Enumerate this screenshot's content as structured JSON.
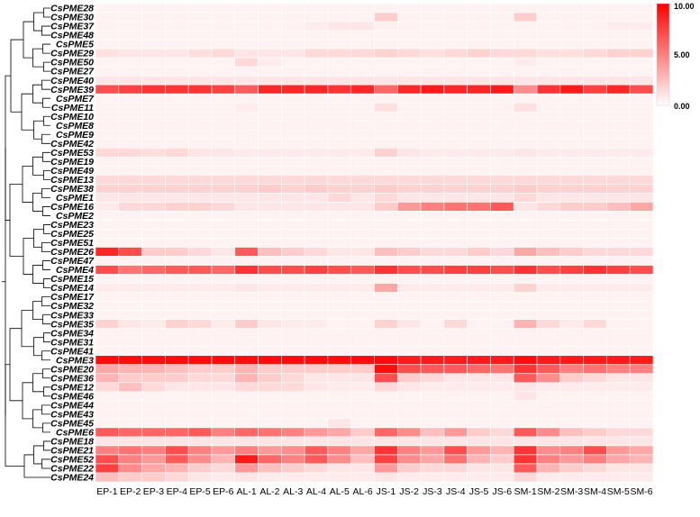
{
  "chart_data": {
    "type": "heatmap",
    "title": "",
    "xlabel": "",
    "ylabel": "",
    "colorscale": {
      "min": 0,
      "max": 10,
      "low_color": "#ffffff",
      "high_color": "#ff0000",
      "ticks": [
        "0.00",
        "5.00",
        "10.00"
      ]
    },
    "columns": [
      "EP-1",
      "EP-2",
      "EP-3",
      "EP-4",
      "EP-5",
      "EP-6",
      "AL-1",
      "AL-2",
      "AL-3",
      "AL-4",
      "AL-5",
      "AL-6",
      "JS-1",
      "JS-2",
      "JS-3",
      "JS-4",
      "JS-5",
      "JS-6",
      "SM-1",
      "SM-2",
      "SM-3",
      "SM-4",
      "SM-5",
      "SM-6"
    ],
    "rows": [
      "CsPME28",
      "CsPME30",
      "CsPME37",
      "CsPME48",
      "CsPME5",
      "CsPME29",
      "CsPME50",
      "CsPME27",
      "CsPME40",
      "CsPME39",
      "CsPME7",
      "CsPME11",
      "CsPME10",
      "CsPME8",
      "CsPME9",
      "CsPME42",
      "CsPME53",
      "CsPME19",
      "CsPME49",
      "CsPME13",
      "CsPME38",
      "CsPME1",
      "CsPME16",
      "CsPME2",
      "CsPME23",
      "CsPME25",
      "CsPME51",
      "CsPME26",
      "CsPME47",
      "CsPME4",
      "CsPME15",
      "CsPME14",
      "CsPME17",
      "CsPME32",
      "CsPME33",
      "CsPME35",
      "CsPME34",
      "CsPME31",
      "CsPME41",
      "CsPME3",
      "CsPME20",
      "CsPME36",
      "CsPME12",
      "CsPME46",
      "CsPME44",
      "CsPME43",
      "CsPME45",
      "CsPME6",
      "CsPME18",
      "CsPME21",
      "CsPME52",
      "CsPME22",
      "CsPME24"
    ],
    "values": [
      [
        0.5,
        0.5,
        0.5,
        0.5,
        0.5,
        0.5,
        0.5,
        0.5,
        0.5,
        0.5,
        0.5,
        0.5,
        0.5,
        0.5,
        0.5,
        0.5,
        0.5,
        0.5,
        0.5,
        0.5,
        0.5,
        0.5,
        0.5,
        0.5
      ],
      [
        0.5,
        0.5,
        0.5,
        0.5,
        0.5,
        0.5,
        0.5,
        0.5,
        0.5,
        0.5,
        0.5,
        0.5,
        2.0,
        0.5,
        0.5,
        0.5,
        0.5,
        0.5,
        2.0,
        0.5,
        0.5,
        0.5,
        0.5,
        0.5
      ],
      [
        0.5,
        0.5,
        0.5,
        0.5,
        0.5,
        0.5,
        0.5,
        0.5,
        0.5,
        0.8,
        1.0,
        1.0,
        0.6,
        0.5,
        0.5,
        0.5,
        0.5,
        0.5,
        0.5,
        0.5,
        0.5,
        0.5,
        0.8,
        0.8
      ],
      [
        0.5,
        0.5,
        0.5,
        0.5,
        0.5,
        0.5,
        0.5,
        0.5,
        0.5,
        0.5,
        0.5,
        0.5,
        0.5,
        0.5,
        0.5,
        0.5,
        0.5,
        0.5,
        0.5,
        0.5,
        0.5,
        0.5,
        0.5,
        0.5
      ],
      [
        0.5,
        0.5,
        0.5,
        0.5,
        0.5,
        0.5,
        0.5,
        0.5,
        0.5,
        0.5,
        0.5,
        0.5,
        0.5,
        0.5,
        0.5,
        0.5,
        0.5,
        0.5,
        0.5,
        0.5,
        0.5,
        0.5,
        0.5,
        0.5
      ],
      [
        1.2,
        1.0,
        1.0,
        1.0,
        1.3,
        1.5,
        1.0,
        1.0,
        1.0,
        1.5,
        1.5,
        1.5,
        1.8,
        1.5,
        1.3,
        1.5,
        1.8,
        1.5,
        1.5,
        1.3,
        1.3,
        1.5,
        1.8,
        1.8
      ],
      [
        0.5,
        0.5,
        0.5,
        0.5,
        0.5,
        0.5,
        1.5,
        0.8,
        0.5,
        0.5,
        0.5,
        0.5,
        0.5,
        0.5,
        0.5,
        0.5,
        0.5,
        0.5,
        0.8,
        0.5,
        0.5,
        0.5,
        0.5,
        0.5
      ],
      [
        0.5,
        0.5,
        0.5,
        0.5,
        0.5,
        0.5,
        0.5,
        0.5,
        0.5,
        0.5,
        0.5,
        0.5,
        0.5,
        0.5,
        0.5,
        0.5,
        0.5,
        0.5,
        0.5,
        0.5,
        0.5,
        0.5,
        0.5,
        0.5
      ],
      [
        1.0,
        1.0,
        1.0,
        1.0,
        1.0,
        1.0,
        1.0,
        1.0,
        1.0,
        1.0,
        1.0,
        1.0,
        1.0,
        1.0,
        1.0,
        1.0,
        1.0,
        1.0,
        1.0,
        1.0,
        1.0,
        1.0,
        1.0,
        1.0
      ],
      [
        7.0,
        7.5,
        8.0,
        8.0,
        8.0,
        7.5,
        6.5,
        8.5,
        8.5,
        8.5,
        8.0,
        8.5,
        6.0,
        8.5,
        9.0,
        8.5,
        8.5,
        9.0,
        4.5,
        8.0,
        9.0,
        7.5,
        8.5,
        7.0
      ],
      [
        0.5,
        0.5,
        0.5,
        0.5,
        0.5,
        0.5,
        0.5,
        0.5,
        0.5,
        0.5,
        0.5,
        0.5,
        0.5,
        0.5,
        0.5,
        0.5,
        0.5,
        0.5,
        0.5,
        0.5,
        0.5,
        0.5,
        0.5,
        0.5
      ],
      [
        0.5,
        0.5,
        0.5,
        0.5,
        0.5,
        0.5,
        0.8,
        0.5,
        0.5,
        0.5,
        0.5,
        0.5,
        1.2,
        0.5,
        0.5,
        0.5,
        0.5,
        0.5,
        1.2,
        0.5,
        0.5,
        0.5,
        0.5,
        0.5
      ],
      [
        0.5,
        0.5,
        0.5,
        0.5,
        0.5,
        0.5,
        0.5,
        0.5,
        0.5,
        0.5,
        0.5,
        0.5,
        0.5,
        0.5,
        0.5,
        0.5,
        0.5,
        0.5,
        0.5,
        0.5,
        0.5,
        0.5,
        0.5,
        0.5
      ],
      [
        0.5,
        0.5,
        0.5,
        0.5,
        0.5,
        0.5,
        0.5,
        0.5,
        0.5,
        0.5,
        0.5,
        0.5,
        0.5,
        0.5,
        0.5,
        0.5,
        0.5,
        0.5,
        0.5,
        0.5,
        0.5,
        0.5,
        0.5,
        0.5
      ],
      [
        0.5,
        0.5,
        0.5,
        0.5,
        0.5,
        0.5,
        0.5,
        0.5,
        0.5,
        0.5,
        0.5,
        0.5,
        0.5,
        0.5,
        0.5,
        0.5,
        0.5,
        0.5,
        0.5,
        0.5,
        0.5,
        0.5,
        0.5,
        0.5
      ],
      [
        0.5,
        0.5,
        0.5,
        0.5,
        0.5,
        0.5,
        0.5,
        0.5,
        0.5,
        0.5,
        0.5,
        0.5,
        0.5,
        0.5,
        0.5,
        0.5,
        0.5,
        0.5,
        0.5,
        0.5,
        0.5,
        0.5,
        0.5,
        0.5
      ],
      [
        1.5,
        1.5,
        1.3,
        1.5,
        1.0,
        1.0,
        0.8,
        0.8,
        0.8,
        0.8,
        0.8,
        0.8,
        1.8,
        1.0,
        0.8,
        0.8,
        0.8,
        0.8,
        1.0,
        0.8,
        0.8,
        0.8,
        0.8,
        0.8
      ],
      [
        0.5,
        0.5,
        0.5,
        0.5,
        0.5,
        0.5,
        0.5,
        0.5,
        0.5,
        0.5,
        0.5,
        0.5,
        0.5,
        0.5,
        0.5,
        0.5,
        0.5,
        0.5,
        0.5,
        0.5,
        0.5,
        0.5,
        0.5,
        0.5
      ],
      [
        0.5,
        0.5,
        0.5,
        0.5,
        0.5,
        0.5,
        0.5,
        0.5,
        0.5,
        0.5,
        0.5,
        0.5,
        0.5,
        0.5,
        0.5,
        0.5,
        0.5,
        0.5,
        0.5,
        0.5,
        0.5,
        0.5,
        0.5,
        0.5
      ],
      [
        1.5,
        1.5,
        1.5,
        1.5,
        1.5,
        1.5,
        1.5,
        1.5,
        1.5,
        1.5,
        1.5,
        1.5,
        1.5,
        1.5,
        1.5,
        1.5,
        1.5,
        1.5,
        1.5,
        1.5,
        1.5,
        1.5,
        1.5,
        1.5
      ],
      [
        1.8,
        1.8,
        1.8,
        1.8,
        1.8,
        1.8,
        1.8,
        2.0,
        1.8,
        2.0,
        1.8,
        1.8,
        2.0,
        1.8,
        1.8,
        1.8,
        1.8,
        1.8,
        2.0,
        1.8,
        1.8,
        1.8,
        1.8,
        1.8
      ],
      [
        1.0,
        1.0,
        1.0,
        1.0,
        1.0,
        1.0,
        1.0,
        1.0,
        1.0,
        1.0,
        1.5,
        1.0,
        1.5,
        1.0,
        1.0,
        1.0,
        1.0,
        1.0,
        1.5,
        1.0,
        1.0,
        1.0,
        1.0,
        1.0
      ],
      [
        0.8,
        1.5,
        1.5,
        1.8,
        1.8,
        1.5,
        1.0,
        1.0,
        1.0,
        1.0,
        1.0,
        1.0,
        2.0,
        4.0,
        5.0,
        5.5,
        5.5,
        6.5,
        1.0,
        1.5,
        2.0,
        2.0,
        2.5,
        3.5
      ],
      [
        0.5,
        0.5,
        0.5,
        0.5,
        0.5,
        0.5,
        0.5,
        0.5,
        0.5,
        0.5,
        0.5,
        0.5,
        0.5,
        0.5,
        0.5,
        0.5,
        0.5,
        0.5,
        0.5,
        0.5,
        0.5,
        0.5,
        0.5,
        0.5
      ],
      [
        0.5,
        0.5,
        0.5,
        0.5,
        0.5,
        0.5,
        0.5,
        0.5,
        0.5,
        0.5,
        0.5,
        0.5,
        0.5,
        0.5,
        0.5,
        0.5,
        0.5,
        0.5,
        0.5,
        0.5,
        0.5,
        0.5,
        0.5,
        0.5
      ],
      [
        0.5,
        0.5,
        0.5,
        0.5,
        0.5,
        0.5,
        0.5,
        0.5,
        0.5,
        0.5,
        0.5,
        0.5,
        0.5,
        0.5,
        0.5,
        0.5,
        0.5,
        0.5,
        0.5,
        0.5,
        0.5,
        0.5,
        0.5,
        0.5
      ],
      [
        0.5,
        0.5,
        0.5,
        0.5,
        0.5,
        0.5,
        0.5,
        0.5,
        0.5,
        0.5,
        0.5,
        0.5,
        0.5,
        0.5,
        0.5,
        0.5,
        0.5,
        0.5,
        0.5,
        0.5,
        0.5,
        0.5,
        0.5,
        0.5
      ],
      [
        8.5,
        7.0,
        2.0,
        2.0,
        1.5,
        1.0,
        6.5,
        2.5,
        2.0,
        1.5,
        1.0,
        1.0,
        2.5,
        2.0,
        1.5,
        1.5,
        2.0,
        1.5,
        3.5,
        2.5,
        2.0,
        1.5,
        1.5,
        1.5
      ],
      [
        0.5,
        0.5,
        0.5,
        0.5,
        0.5,
        0.5,
        0.5,
        0.5,
        0.5,
        0.5,
        0.5,
        0.5,
        0.5,
        0.5,
        0.5,
        0.5,
        0.5,
        0.5,
        0.5,
        0.5,
        0.5,
        0.5,
        0.5,
        0.5
      ],
      [
        7.0,
        5.5,
        6.0,
        6.5,
        6.5,
        6.0,
        8.0,
        7.0,
        7.0,
        7.5,
        7.0,
        6.5,
        8.0,
        7.0,
        7.0,
        7.5,
        7.5,
        7.0,
        8.0,
        7.0,
        7.5,
        8.0,
        7.5,
        7.0
      ],
      [
        0.5,
        0.5,
        0.5,
        0.5,
        0.5,
        0.5,
        0.5,
        0.5,
        0.5,
        0.5,
        0.5,
        0.5,
        0.5,
        0.5,
        0.5,
        0.5,
        0.5,
        0.5,
        0.5,
        0.5,
        0.5,
        0.5,
        0.5,
        0.5
      ],
      [
        0.8,
        0.8,
        0.8,
        0.8,
        0.8,
        0.8,
        1.0,
        0.8,
        0.8,
        0.8,
        0.8,
        0.8,
        3.5,
        0.8,
        0.8,
        0.8,
        0.8,
        0.8,
        1.8,
        0.8,
        0.8,
        0.8,
        0.8,
        0.8
      ],
      [
        0.5,
        0.5,
        0.5,
        0.5,
        0.5,
        0.5,
        0.5,
        0.5,
        0.5,
        0.5,
        0.5,
        0.5,
        0.5,
        0.5,
        0.5,
        0.5,
        0.5,
        0.5,
        0.5,
        0.5,
        0.5,
        0.5,
        0.5,
        0.5
      ],
      [
        0.5,
        0.5,
        0.5,
        0.5,
        0.5,
        0.5,
        0.5,
        0.5,
        0.5,
        0.5,
        0.5,
        0.5,
        0.5,
        0.5,
        0.5,
        0.5,
        0.5,
        0.5,
        0.5,
        0.5,
        0.5,
        0.5,
        0.5,
        0.5
      ],
      [
        0.5,
        0.5,
        0.5,
        0.5,
        0.5,
        0.5,
        0.5,
        0.5,
        0.5,
        0.5,
        0.5,
        0.5,
        0.5,
        0.5,
        0.5,
        0.5,
        0.5,
        0.5,
        0.5,
        0.5,
        0.5,
        0.5,
        0.5,
        0.5
      ],
      [
        1.8,
        1.0,
        0.8,
        1.8,
        1.5,
        0.8,
        2.0,
        1.0,
        0.8,
        0.8,
        0.5,
        0.5,
        1.8,
        1.0,
        0.5,
        1.5,
        0.5,
        0.5,
        3.0,
        1.5,
        0.8,
        1.5,
        0.5,
        0.5
      ],
      [
        0.5,
        0.5,
        0.5,
        0.5,
        0.5,
        0.5,
        0.5,
        0.5,
        0.5,
        0.5,
        0.5,
        0.5,
        0.5,
        0.5,
        0.5,
        0.5,
        0.5,
        0.5,
        0.5,
        0.5,
        0.5,
        0.5,
        0.5,
        0.5
      ],
      [
        0.5,
        0.5,
        0.5,
        0.5,
        0.5,
        0.5,
        0.5,
        0.5,
        0.5,
        0.5,
        0.5,
        0.5,
        0.5,
        0.5,
        0.5,
        0.5,
        0.5,
        0.5,
        0.5,
        0.5,
        0.5,
        0.5,
        0.5,
        0.5
      ],
      [
        0.5,
        0.5,
        0.5,
        0.5,
        0.5,
        0.5,
        0.5,
        0.5,
        0.5,
        0.5,
        0.5,
        0.5,
        0.5,
        0.5,
        0.5,
        0.5,
        0.5,
        0.5,
        0.5,
        0.5,
        0.5,
        0.5,
        0.5,
        0.5
      ],
      [
        9.5,
        9.5,
        9.5,
        9.5,
        9.5,
        9.5,
        9.5,
        9.5,
        9.5,
        9.5,
        9.5,
        9.5,
        9.5,
        9.0,
        9.0,
        9.0,
        9.0,
        9.0,
        9.5,
        9.0,
        9.0,
        9.0,
        9.0,
        9.0
      ],
      [
        3.5,
        3.0,
        3.0,
        2.5,
        2.0,
        2.0,
        3.0,
        2.0,
        2.0,
        2.0,
        2.0,
        2.0,
        9.5,
        7.0,
        6.5,
        6.5,
        6.0,
        5.5,
        8.0,
        6.5,
        5.0,
        5.5,
        5.0,
        5.0
      ],
      [
        3.0,
        2.0,
        2.0,
        2.0,
        1.5,
        1.5,
        3.0,
        2.0,
        1.5,
        1.0,
        1.0,
        1.0,
        7.0,
        2.0,
        1.5,
        1.0,
        1.0,
        1.0,
        6.5,
        4.5,
        2.0,
        1.5,
        1.0,
        1.0
      ],
      [
        1.5,
        2.5,
        1.5,
        1.0,
        1.0,
        1.0,
        1.5,
        1.5,
        1.5,
        1.0,
        0.8,
        0.8,
        1.5,
        1.0,
        0.8,
        0.8,
        0.8,
        0.8,
        1.0,
        0.8,
        0.8,
        0.8,
        0.8,
        0.8
      ],
      [
        0.5,
        0.5,
        0.5,
        0.5,
        0.5,
        0.5,
        0.5,
        0.5,
        0.5,
        0.5,
        0.5,
        0.5,
        0.5,
        0.5,
        0.5,
        0.5,
        0.5,
        0.5,
        1.0,
        0.5,
        0.5,
        0.5,
        0.5,
        0.5
      ],
      [
        0.5,
        0.5,
        0.5,
        0.5,
        0.5,
        0.5,
        0.5,
        0.5,
        0.5,
        0.5,
        0.5,
        0.5,
        0.5,
        0.5,
        0.5,
        0.5,
        0.5,
        0.5,
        0.5,
        0.5,
        0.5,
        0.5,
        0.5,
        0.5
      ],
      [
        0.5,
        0.5,
        0.5,
        0.5,
        0.5,
        0.5,
        0.5,
        0.5,
        0.5,
        0.5,
        0.5,
        0.5,
        0.5,
        0.5,
        0.5,
        0.5,
        0.5,
        0.5,
        0.5,
        0.5,
        0.5,
        0.5,
        0.5,
        0.5
      ],
      [
        0.5,
        0.5,
        0.5,
        0.5,
        0.5,
        0.5,
        0.5,
        0.5,
        0.5,
        0.5,
        1.0,
        0.5,
        0.5,
        0.5,
        0.5,
        0.5,
        0.5,
        0.5,
        0.5,
        0.5,
        0.5,
        0.5,
        0.5,
        0.5
      ],
      [
        6.5,
        6.0,
        6.0,
        6.0,
        6.5,
        5.0,
        6.0,
        5.5,
        5.0,
        4.0,
        3.5,
        2.0,
        6.0,
        4.5,
        2.5,
        4.0,
        2.0,
        1.5,
        6.5,
        4.5,
        2.5,
        2.0,
        1.5,
        1.5
      ],
      [
        1.0,
        1.0,
        1.0,
        1.0,
        1.0,
        1.0,
        1.0,
        1.0,
        1.0,
        1.0,
        1.0,
        1.0,
        1.0,
        1.0,
        1.0,
        1.0,
        1.0,
        1.0,
        1.0,
        1.0,
        1.0,
        1.0,
        1.0,
        1.0
      ],
      [
        5.0,
        5.5,
        5.0,
        7.0,
        5.0,
        4.0,
        5.0,
        4.0,
        4.5,
        6.5,
        5.0,
        3.5,
        8.0,
        5.0,
        4.0,
        7.0,
        4.0,
        3.0,
        8.0,
        4.5,
        5.0,
        7.0,
        4.0,
        3.5
      ],
      [
        7.0,
        5.0,
        4.0,
        6.5,
        4.5,
        3.0,
        9.0,
        6.0,
        5.0,
        6.5,
        4.5,
        2.5,
        7.5,
        4.5,
        3.5,
        5.5,
        3.0,
        2.0,
        8.0,
        5.0,
        4.0,
        5.0,
        3.5,
        3.0
      ],
      [
        7.5,
        4.5,
        3.5,
        3.0,
        2.0,
        1.5,
        4.0,
        2.5,
        2.0,
        1.5,
        1.0,
        1.0,
        4.0,
        2.0,
        1.5,
        1.5,
        1.0,
        1.0,
        6.5,
        3.0,
        2.0,
        1.5,
        1.0,
        1.0
      ],
      [
        2.5,
        2.0,
        2.0,
        1.5,
        1.0,
        0.8,
        1.0,
        0.8,
        0.8,
        0.8,
        0.8,
        0.8,
        1.0,
        0.8,
        0.8,
        0.8,
        0.8,
        0.8,
        1.5,
        0.8,
        0.8,
        0.8,
        0.8,
        0.8
      ]
    ]
  }
}
